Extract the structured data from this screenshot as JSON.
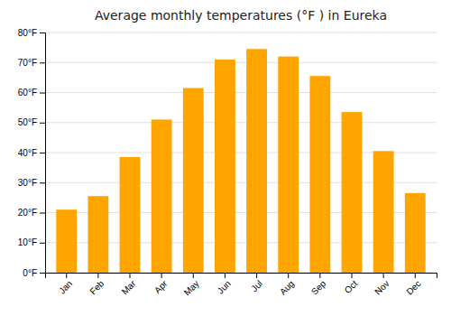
{
  "chart_data": {
    "type": "bar",
    "title": "Average monthly temperatures (°F ) in Eureka",
    "categories": [
      "Jan",
      "Feb",
      "Mar",
      "Apr",
      "May",
      "Jun",
      "Jul",
      "Aug",
      "Sep",
      "Oct",
      "Nov",
      "Dec"
    ],
    "values": [
      21,
      25.5,
      38.5,
      51,
      61.5,
      71,
      74.5,
      72,
      65.5,
      53.5,
      40.5,
      26.5
    ],
    "color": "#FFA500",
    "ylim": [
      0,
      80
    ],
    "yticks": [
      {
        "value": 0,
        "label": "0°F"
      },
      {
        "value": 10,
        "label": "10°F"
      },
      {
        "value": 20,
        "label": "20°F"
      },
      {
        "value": 30,
        "label": "30°F"
      },
      {
        "value": 40,
        "label": "40°F"
      },
      {
        "value": 50,
        "label": "50°F"
      },
      {
        "value": 60,
        "label": "60°F"
      },
      {
        "value": 70,
        "label": "70°F"
      },
      {
        "value": 80,
        "label": "80°F"
      }
    ],
    "grid": true
  }
}
